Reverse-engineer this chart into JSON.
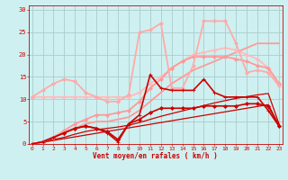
{
  "bg_color": "#cff0f0",
  "grid_color": "#aacccc",
  "xlabel": "Vent moyen/en rafales ( km/h )",
  "xlabel_color": "#cc0000",
  "tick_color": "#cc0000",
  "x_ticks": [
    0,
    1,
    2,
    3,
    4,
    5,
    6,
    7,
    8,
    9,
    10,
    11,
    12,
    13,
    14,
    15,
    16,
    17,
    18,
    19,
    20,
    21,
    22,
    23
  ],
  "y_ticks": [
    0,
    5,
    10,
    15,
    20,
    25,
    30
  ],
  "xlim": [
    -0.3,
    23.3
  ],
  "ylim": [
    0,
    31
  ],
  "lines": [
    {
      "x": [
        0,
        1,
        2,
        3,
        4,
        5,
        6,
        7,
        8,
        9,
        10,
        11,
        12,
        13,
        14,
        15,
        16,
        17,
        18,
        19,
        20,
        21,
        22,
        23
      ],
      "y": [
        0,
        0.4,
        0.8,
        1.2,
        1.6,
        2.0,
        2.4,
        2.8,
        3.2,
        3.6,
        4.0,
        4.4,
        4.8,
        5.2,
        5.6,
        6.0,
        6.4,
        6.8,
        7.2,
        7.6,
        8.0,
        8.4,
        8.8,
        4.2
      ],
      "color": "#cc0000",
      "linewidth": 0.9,
      "marker": null,
      "markersize": 0,
      "zorder": 2
    },
    {
      "x": [
        0,
        1,
        2,
        3,
        4,
        5,
        6,
        7,
        8,
        9,
        10,
        11,
        12,
        13,
        14,
        15,
        16,
        17,
        18,
        19,
        20,
        21,
        22,
        23
      ],
      "y": [
        0,
        0.5,
        1.0,
        1.5,
        2.2,
        2.8,
        3.2,
        3.5,
        3.8,
        4.2,
        4.8,
        5.5,
        6.2,
        6.8,
        7.4,
        8.0,
        8.6,
        9.2,
        9.7,
        10.2,
        10.6,
        11.0,
        11.3,
        4.5
      ],
      "color": "#cc0000",
      "linewidth": 0.9,
      "marker": null,
      "markersize": 0,
      "zorder": 2
    },
    {
      "x": [
        0,
        1,
        2,
        3,
        4,
        5,
        6,
        7,
        8,
        9,
        10,
        11,
        12,
        13,
        14,
        15,
        16,
        17,
        18,
        19,
        20,
        21,
        22,
        23
      ],
      "y": [
        0,
        0.5,
        1.5,
        2.5,
        3.5,
        4.0,
        3.5,
        2.5,
        0.5,
        4.5,
        6.5,
        15.5,
        12.5,
        12.0,
        12.0,
        12.0,
        14.5,
        11.5,
        10.5,
        10.5,
        10.5,
        10.5,
        7.5,
        4.0
      ],
      "color": "#cc0000",
      "linewidth": 1.2,
      "marker": "+",
      "markersize": 3.5,
      "zorder": 4
    },
    {
      "x": [
        0,
        1,
        2,
        3,
        4,
        5,
        6,
        7,
        8,
        9,
        10,
        11,
        12,
        13,
        14,
        15,
        16,
        17,
        18,
        19,
        20,
        21,
        22,
        23
      ],
      "y": [
        0,
        0.5,
        1.5,
        2.5,
        3.5,
        4.0,
        3.5,
        2.8,
        1.0,
        4.5,
        5.5,
        7.0,
        8.0,
        8.0,
        8.0,
        8.0,
        8.5,
        8.5,
        8.5,
        8.5,
        9.0,
        9.0,
        8.5,
        4.0
      ],
      "color": "#cc0000",
      "linewidth": 1.2,
      "marker": "D",
      "markersize": 2.0,
      "zorder": 3
    },
    {
      "x": [
        0,
        1,
        2,
        3,
        4,
        5,
        6,
        7,
        8,
        9,
        10,
        11,
        12,
        13,
        14,
        15,
        16,
        17,
        18,
        19,
        20,
        21,
        22,
        23
      ],
      "y": [
        0,
        0.5,
        1.5,
        3.0,
        4.5,
        5.5,
        6.5,
        6.5,
        7.0,
        7.5,
        9.5,
        12.5,
        14.5,
        17.0,
        18.5,
        19.5,
        19.5,
        19.5,
        19.5,
        19.0,
        18.5,
        17.5,
        17.0,
        13.5
      ],
      "color": "#ff9999",
      "linewidth": 1.3,
      "marker": "D",
      "markersize": 2.0,
      "zorder": 3
    },
    {
      "x": [
        0,
        1,
        2,
        3,
        4,
        5,
        6,
        7,
        8,
        9,
        10,
        11,
        12,
        13,
        14,
        15,
        16,
        17,
        18,
        19,
        20,
        21,
        22,
        23
      ],
      "y": [
        0,
        0.5,
        1.5,
        2.5,
        3.5,
        4.5,
        5.0,
        5.0,
        5.5,
        6.0,
        7.5,
        9.5,
        11.5,
        13.5,
        15.0,
        16.5,
        17.5,
        18.5,
        19.5,
        20.5,
        21.5,
        22.5,
        22.5,
        22.5
      ],
      "color": "#ff9999",
      "linewidth": 1.3,
      "marker": null,
      "markersize": 0,
      "zorder": 2
    },
    {
      "x": [
        0,
        1,
        2,
        3,
        4,
        5,
        6,
        7,
        8,
        9,
        10,
        11,
        12,
        13,
        14,
        15,
        16,
        17,
        18,
        19,
        20,
        21,
        22,
        23
      ],
      "y": [
        10.5,
        12.0,
        13.5,
        14.5,
        14.0,
        11.5,
        10.5,
        9.5,
        9.5,
        11.0,
        25.0,
        25.5,
        27.0,
        12.5,
        12.5,
        17.5,
        27.5,
        27.5,
        27.5,
        22.5,
        16.0,
        16.5,
        16.0,
        13.0
      ],
      "color": "#ffaaaa",
      "linewidth": 1.3,
      "marker": "D",
      "markersize": 2.0,
      "zorder": 3
    },
    {
      "x": [
        0,
        1,
        2,
        3,
        4,
        5,
        6,
        7,
        8,
        9,
        10,
        11,
        12,
        13,
        14,
        15,
        16,
        17,
        18,
        19,
        20,
        21,
        22,
        23
      ],
      "y": [
        10.5,
        10.5,
        10.5,
        10.5,
        10.5,
        10.5,
        10.5,
        10.5,
        10.5,
        10.5,
        11.5,
        13.5,
        15.0,
        17.0,
        18.5,
        20.0,
        20.5,
        21.0,
        21.5,
        21.0,
        20.0,
        19.0,
        17.0,
        13.5
      ],
      "color": "#ffbbbb",
      "linewidth": 1.3,
      "marker": "D",
      "markersize": 2.0,
      "zorder": 2
    }
  ]
}
